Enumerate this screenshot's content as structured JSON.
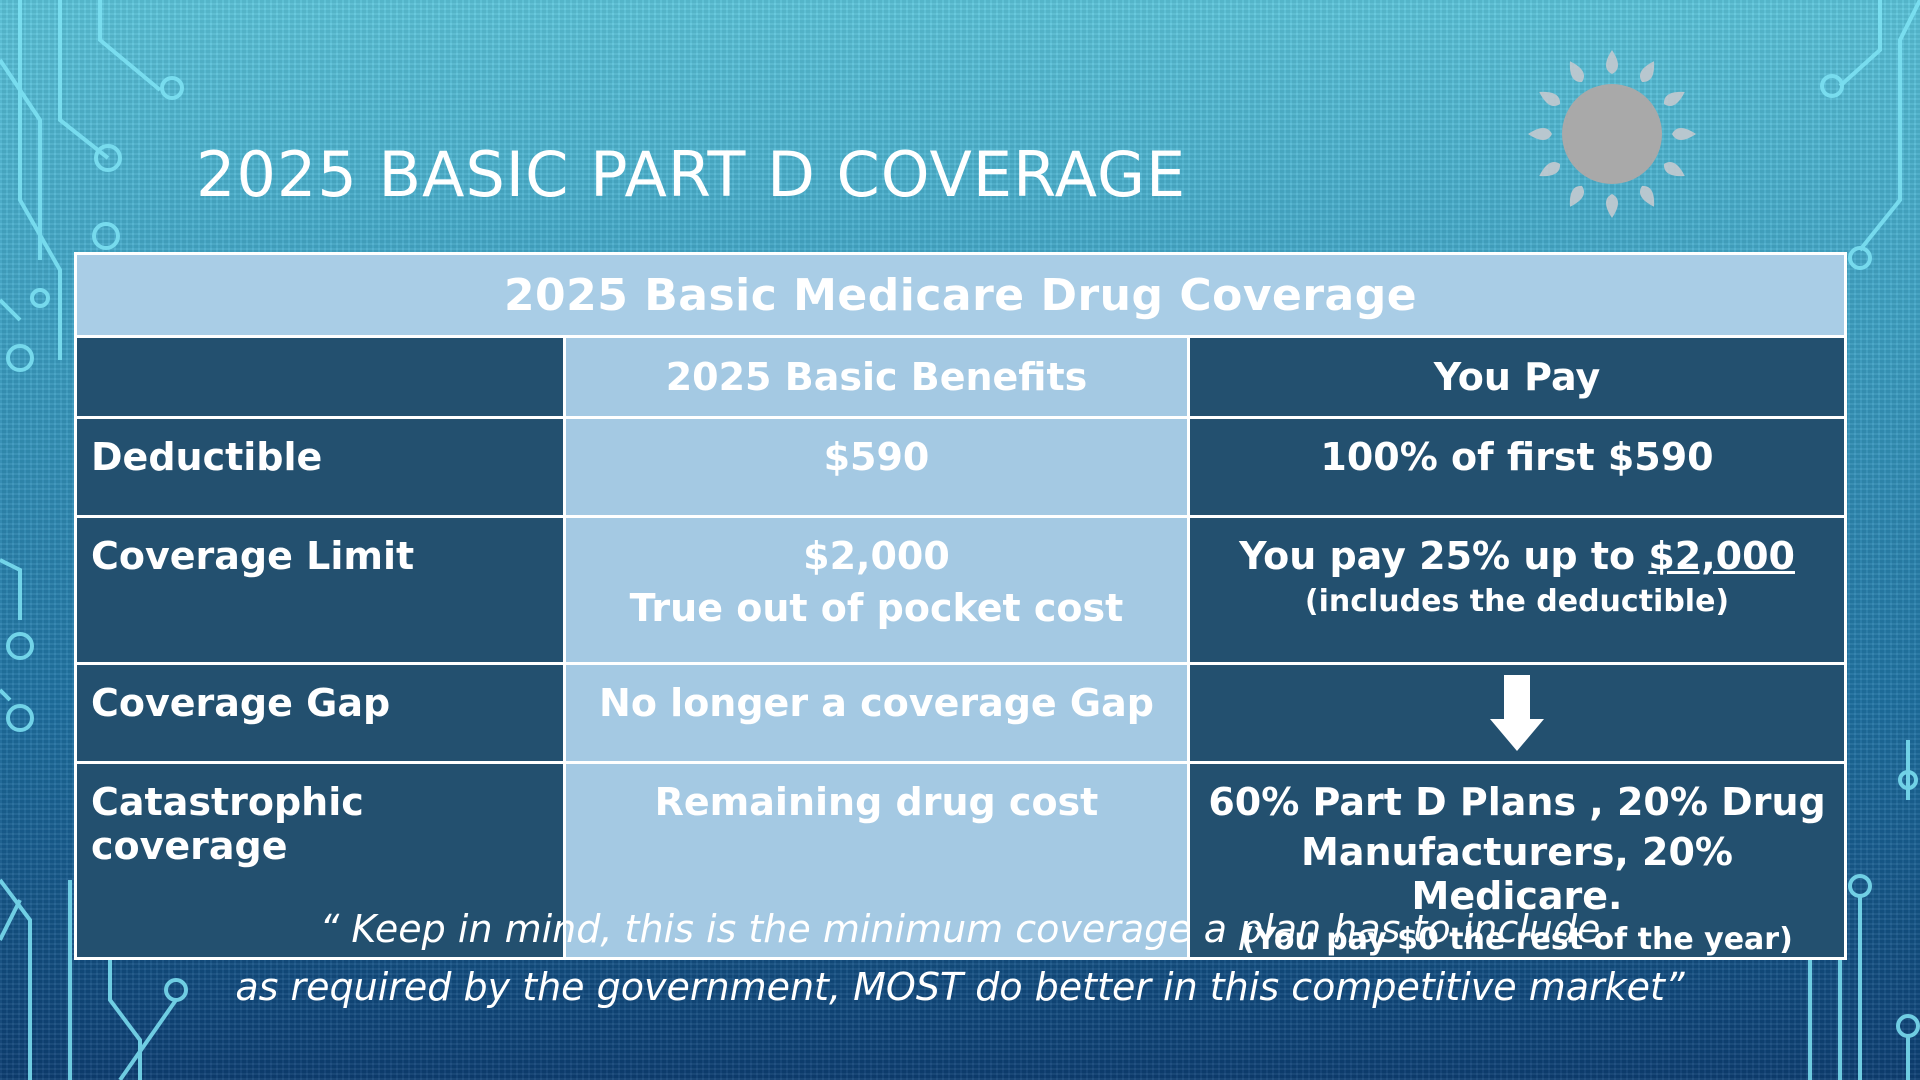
{
  "slide": {
    "title": "2025 BASIC PART D COVERAGE",
    "decoration_icon": "sun-icon",
    "colors": {
      "header_dark": "#23506f",
      "cell_light": "#a4c9e3",
      "caption_bg": "#a9cde6",
      "text": "#ffffff"
    }
  },
  "table": {
    "caption": "2025 Basic Medicare Drug Coverage",
    "columns": [
      "",
      "2025 Basic Benefits",
      "You Pay"
    ],
    "rows": [
      {
        "label": "Deductible",
        "benefit": "$590",
        "pay": "100% of first $590"
      },
      {
        "label": "Coverage Limit",
        "benefit": "$2,000",
        "benefit_sub": "True out of pocket cost",
        "pay_prefix": "You pay 25% up to ",
        "pay_amount": "$2,000",
        "pay_sub": "(includes the deductible)"
      },
      {
        "label": "Coverage Gap",
        "benefit": "No longer a coverage Gap",
        "pay_icon": "arrow-down-icon"
      },
      {
        "label": "Catastrophic coverage",
        "benefit": "Remaining drug cost",
        "pay_line1": "60% Part D Plans , 20% Drug",
        "pay_line2": "Manufacturers, 20% Medicare.",
        "pay_sub": "(You pay $0 the rest of the year)"
      }
    ]
  },
  "quote": {
    "line1": "“ Keep in mind, this is the minimum coverage a plan has to include",
    "line2": "as required by the government, MOST do better in this competitive market”"
  }
}
